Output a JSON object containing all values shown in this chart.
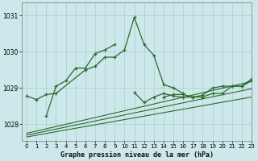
{
  "background_color": "#cce8ea",
  "grid_color": "#aacccc",
  "line_color": "#2d6a2d",
  "title": "Graphe pression niveau de la mer (hPa)",
  "xlim": [
    -0.5,
    23
  ],
  "ylim": [
    1027.55,
    1031.35
  ],
  "yticks": [
    1028,
    1029,
    1030,
    1031
  ],
  "xticks": [
    0,
    1,
    2,
    3,
    4,
    5,
    6,
    7,
    8,
    9,
    10,
    11,
    12,
    13,
    14,
    15,
    16,
    17,
    18,
    19,
    20,
    21,
    22,
    23
  ],
  "series1": {
    "x": [
      0,
      1,
      2,
      3,
      6,
      7,
      8,
      9,
      10,
      11,
      12,
      13,
      14,
      15,
      16
    ],
    "y": [
      1028.78,
      1028.68,
      1028.82,
      1028.85,
      1029.5,
      1029.6,
      1029.85,
      1029.85,
      1030.05,
      1030.95,
      1030.2,
      1029.9,
      1029.1,
      1029.0,
      1028.85
    ]
  },
  "series2": {
    "x": [
      2,
      3,
      4,
      5,
      6,
      7,
      8,
      9
    ],
    "y": [
      1028.22,
      1029.05,
      1029.2,
      1029.55,
      1029.55,
      1029.95,
      1030.05,
      1030.2
    ]
  },
  "series3": {
    "x": [
      11,
      12,
      13,
      14,
      15,
      16,
      17,
      18,
      19,
      20,
      21,
      22,
      23
    ],
    "y": [
      1028.88,
      1028.6,
      1028.75,
      1028.85,
      1028.78,
      1028.75,
      1028.75,
      1028.8,
      1029.0,
      1029.05,
      1029.05,
      1029.05,
      1029.2
    ]
  },
  "series4": {
    "x": [
      14,
      15,
      16,
      17,
      18,
      19,
      20,
      21,
      22,
      23
    ],
    "y": [
      1028.75,
      1028.82,
      1028.82,
      1028.75,
      1028.75,
      1028.85,
      1028.85,
      1029.05,
      1029.05,
      1029.25
    ]
  },
  "linear_lines": [
    {
      "x": [
        0,
        23
      ],
      "y": [
        1027.65,
        1028.75
      ]
    },
    {
      "x": [
        0,
        23
      ],
      "y": [
        1027.7,
        1028.98
      ]
    },
    {
      "x": [
        0,
        23
      ],
      "y": [
        1027.75,
        1029.18
      ]
    }
  ]
}
